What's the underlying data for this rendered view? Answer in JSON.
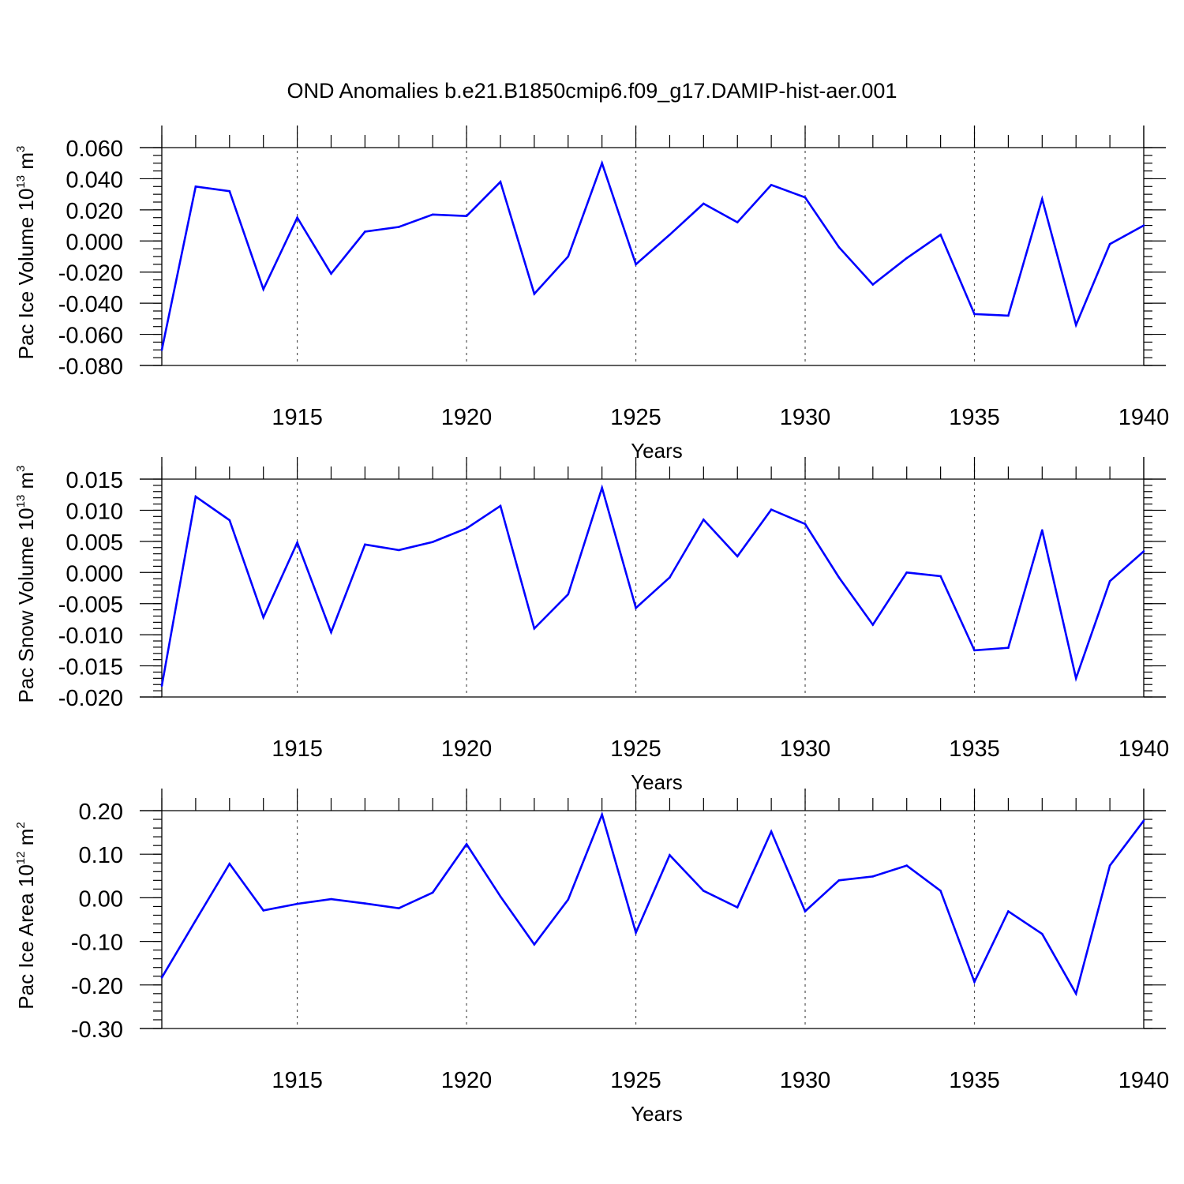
{
  "title": "OND Anomalies b.e21.B1850cmip6.f09_g17.DAMIP-hist-aer.001",
  "colors": {
    "series": "#0000ff"
  },
  "chart_data": [
    {
      "type": "line",
      "ylabel": "Pac Ice Volume 10",
      "ylabel_sup": "13",
      "ylabel_unit": " m",
      "ylabel_unit_sup": "3",
      "xlabel": "Years",
      "xlim": [
        1911,
        1940
      ],
      "ylim": [
        -0.08,
        0.06
      ],
      "x_ticks": [
        1915,
        1920,
        1925,
        1930,
        1935,
        1940
      ],
      "x_tick_labels": [
        "1915",
        "1920",
        "1925",
        "1930",
        "1935",
        "1940"
      ],
      "y_ticks": [
        -0.08,
        -0.06,
        -0.04,
        -0.02,
        0.0,
        0.02,
        0.04,
        0.06
      ],
      "y_tick_labels": [
        "-0.080",
        "-0.060",
        "-0.040",
        "-0.020",
        "0.000",
        "0.020",
        "0.040",
        "0.060"
      ],
      "y_minor_step": 0.005,
      "grid": "vertical dashed at major x ticks",
      "x": [
        1911,
        1912,
        1913,
        1914,
        1915,
        1916,
        1917,
        1918,
        1919,
        1920,
        1921,
        1922,
        1923,
        1924,
        1925,
        1926,
        1927,
        1928,
        1929,
        1930,
        1931,
        1932,
        1933,
        1934,
        1935,
        1936,
        1937,
        1938,
        1939,
        1940
      ],
      "values": [
        -0.07,
        0.035,
        0.032,
        -0.031,
        0.015,
        -0.021,
        0.006,
        0.009,
        0.017,
        0.016,
        0.038,
        -0.034,
        -0.01,
        0.05,
        -0.015,
        0.004,
        0.024,
        0.012,
        0.036,
        0.028,
        -0.004,
        -0.028,
        -0.011,
        0.004,
        -0.047,
        -0.048,
        0.027,
        -0.054,
        -0.002,
        0.01
      ]
    },
    {
      "type": "line",
      "ylabel": "Pac Snow Volume 10",
      "ylabel_sup": "13",
      "ylabel_unit": " m",
      "ylabel_unit_sup": "3",
      "xlabel": "Years",
      "xlim": [
        1911,
        1940
      ],
      "ylim": [
        -0.02,
        0.015
      ],
      "x_ticks": [
        1915,
        1920,
        1925,
        1930,
        1935,
        1940
      ],
      "x_tick_labels": [
        "1915",
        "1920",
        "1925",
        "1930",
        "1935",
        "1940"
      ],
      "y_ticks": [
        -0.02,
        -0.015,
        -0.01,
        -0.005,
        0.0,
        0.005,
        0.01,
        0.015
      ],
      "y_tick_labels": [
        "-0.020",
        "-0.015",
        "-0.010",
        "-0.005",
        "0.000",
        "0.005",
        "0.010",
        "0.015"
      ],
      "y_minor_step": 0.001,
      "grid": "vertical dashed at major x ticks",
      "x": [
        1911,
        1912,
        1913,
        1914,
        1915,
        1916,
        1917,
        1918,
        1919,
        1920,
        1921,
        1922,
        1923,
        1924,
        1925,
        1926,
        1927,
        1928,
        1929,
        1930,
        1931,
        1932,
        1933,
        1934,
        1935,
        1936,
        1937,
        1938,
        1939,
        1940
      ],
      "values": [
        -0.0182,
        0.0122,
        0.0084,
        -0.0072,
        0.0048,
        -0.0096,
        0.0045,
        0.0036,
        0.0049,
        0.0071,
        0.0107,
        -0.009,
        -0.0035,
        0.0136,
        -0.0057,
        -0.0008,
        0.0085,
        0.0026,
        0.0101,
        0.0078,
        -0.0008,
        -0.0084,
        0.0,
        -0.0006,
        -0.0125,
        -0.0121,
        0.0068,
        -0.017,
        -0.0014,
        0.0034
      ]
    },
    {
      "type": "line",
      "ylabel": "Pac Ice Area 10",
      "ylabel_sup": "12",
      "ylabel_unit": " m",
      "ylabel_unit_sup": "2",
      "xlabel": "Years",
      "xlim": [
        1911,
        1940
      ],
      "ylim": [
        -0.3,
        0.2
      ],
      "x_ticks": [
        1915,
        1920,
        1925,
        1930,
        1935,
        1940
      ],
      "x_tick_labels": [
        "1915",
        "1920",
        "1925",
        "1930",
        "1935",
        "1940"
      ],
      "y_ticks": [
        -0.3,
        -0.2,
        -0.1,
        0.0,
        0.1,
        0.2
      ],
      "y_tick_labels": [
        "-0.30",
        "-0.20",
        "-0.10",
        "0.00",
        "0.10",
        "0.20"
      ],
      "y_minor_step": 0.02,
      "grid": "vertical dashed at major x ticks",
      "x": [
        1911,
        1912,
        1913,
        1914,
        1915,
        1916,
        1917,
        1918,
        1919,
        1920,
        1921,
        1922,
        1923,
        1924,
        1925,
        1926,
        1927,
        1928,
        1929,
        1930,
        1931,
        1932,
        1933,
        1934,
        1935,
        1936,
        1937,
        1938,
        1939,
        1940
      ],
      "values": [
        -0.183,
        -0.052,
        0.078,
        -0.029,
        -0.014,
        -0.003,
        -0.013,
        -0.024,
        0.012,
        0.123,
        0.003,
        -0.107,
        -0.004,
        0.191,
        -0.08,
        0.098,
        0.016,
        -0.022,
        0.152,
        -0.031,
        0.04,
        0.049,
        0.074,
        0.016,
        -0.193,
        -0.031,
        -0.083,
        -0.22,
        0.074,
        0.177
      ]
    }
  ]
}
